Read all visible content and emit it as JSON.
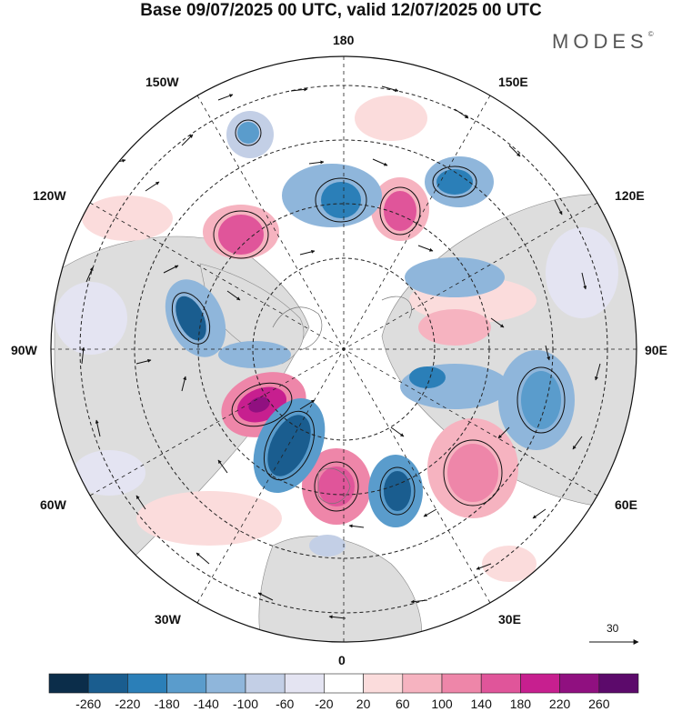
{
  "title": "Base 09/07/2025 00 UTC, valid 12/07/2025 00 UTC",
  "brand": {
    "name": "MODES",
    "mark": "©"
  },
  "longitude_labels": {
    "top": "180",
    "bottom": "0",
    "left": "90W",
    "right": "90E",
    "upper_left_1": "150W",
    "upper_left_2": "120W",
    "upper_right_1": "150E",
    "upper_right_2": "120E",
    "lower_left_1": "60W",
    "lower_left_2": "30W",
    "lower_right_1": "60E",
    "lower_right_2": "30E"
  },
  "vector_scale": {
    "label": "30"
  },
  "colorbar": {
    "levels": [
      "-260",
      "-220",
      "-180",
      "-140",
      "-100",
      "-60",
      "-20",
      "20",
      "60",
      "100",
      "140",
      "180",
      "220",
      "260"
    ],
    "colors": [
      "#0b2d4a",
      "#1a5d8f",
      "#2b7fb8",
      "#5a9ccc",
      "#8fb6db",
      "#c3cfe6",
      "#e4e4f2",
      "#ffffff",
      "#fbdcdc",
      "#f6b3c0",
      "#ee86a9",
      "#e0559a",
      "#c71f8f",
      "#901080",
      "#5c0a6b"
    ]
  },
  "map_colors": {
    "land": "#d9d9d9",
    "ocean": "#ffffff",
    "coast": "#777777"
  }
}
